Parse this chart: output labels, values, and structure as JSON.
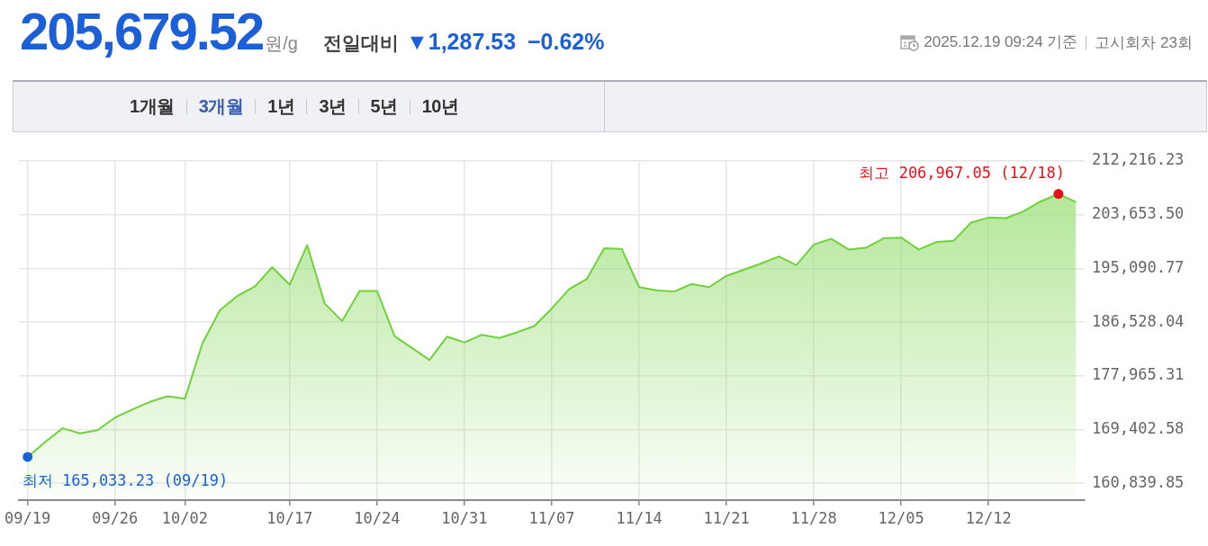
{
  "chart_data": {
    "type": "area",
    "title": "205,679.52원/g",
    "subtitle": "전일대비 ▼1,287.53 −0.62%",
    "categories": [
      "09/19",
      null,
      null,
      null,
      null,
      "09/26",
      null,
      null,
      null,
      "10/02",
      null,
      null,
      null,
      null,
      null,
      "10/17",
      null,
      null,
      null,
      null,
      "10/24",
      null,
      null,
      null,
      null,
      "10/31",
      null,
      null,
      null,
      null,
      "11/07",
      null,
      null,
      null,
      null,
      "11/14",
      null,
      null,
      null,
      null,
      "11/21",
      null,
      null,
      null,
      null,
      "11/28",
      null,
      null,
      null,
      null,
      "12/05",
      null,
      null,
      null,
      null,
      "12/12",
      null,
      null,
      null,
      null,
      null
    ],
    "values": [
      165033.23,
      167400,
      169600,
      168800,
      169300,
      171300,
      172600,
      173800,
      174700,
      174300,
      183100,
      188400,
      190700,
      192200,
      195300,
      192500,
      198800,
      189500,
      186700,
      191500,
      191500,
      184300,
      182400,
      180500,
      184200,
      183300,
      184500,
      184000,
      184900,
      185900,
      188700,
      191800,
      193400,
      198300,
      198200,
      192100,
      191600,
      191400,
      192600,
      192100,
      193900,
      194900,
      195900,
      197000,
      195600,
      198900,
      199800,
      198100,
      198400,
      199900,
      200000,
      198100,
      199300,
      199500,
      202400,
      203200,
      203100,
      204200,
      205800,
      206967.05,
      205679.52
    ],
    "color": "#70d13c",
    "ylim": [
      158140,
      212216.23
    ],
    "yticks": [
      {
        "value": 160839.85,
        "label": "160,839.85"
      },
      {
        "value": 169402.58,
        "label": "169,402.58"
      },
      {
        "value": 177965.31,
        "label": "177,965.31"
      },
      {
        "value": 186528.04,
        "label": "186,528.04"
      },
      {
        "value": 195090.77,
        "label": "195,090.77"
      },
      {
        "value": 203653.5,
        "label": "203,653.50"
      },
      {
        "value": 212216.23,
        "label": "212,216.23"
      }
    ],
    "grid": true,
    "marker": "none",
    "legend": false,
    "annotations": [
      {
        "text": "최저 165,033.23 (09/19)",
        "x": "09/19",
        "y": 165033.23
      },
      "최고 206,967.05 (12/18)",
      "2025.12.19 09:24 기준",
      "고시회차 23회",
      "1개월",
      "3개월",
      "1년",
      "3년",
      "5년",
      "10년"
    ]
  }
}
